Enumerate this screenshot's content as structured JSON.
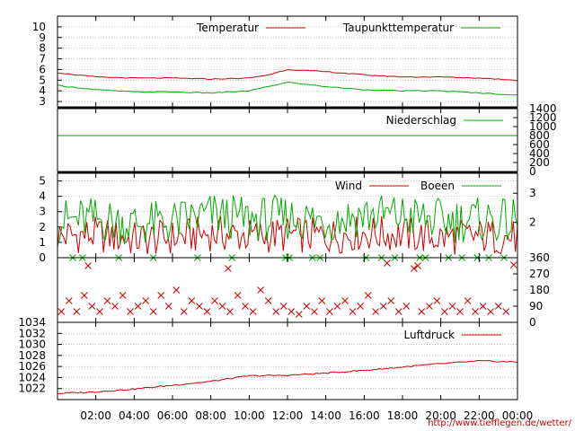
{
  "x_ticks": [
    "02:00",
    "04:00",
    "06:00",
    "08:00",
    "10:00",
    "12:00",
    "14:00",
    "16:00",
    "18:00",
    "20:00",
    "22:00",
    "00:00"
  ],
  "footer": "http://www.tiefflegen.de/wetter/",
  "colors": {
    "red": "#cc0000",
    "green": "#00aa00",
    "grid": "#999999"
  },
  "chart_data": [
    {
      "type": "line",
      "name": "temperature",
      "ylim": [
        2.5,
        11
      ],
      "y_ticks": [
        "3",
        "4",
        "5",
        "6",
        "7",
        "8",
        "9",
        "10"
      ],
      "grid": true,
      "legend": "top-right",
      "x": [
        0,
        2,
        4,
        6,
        8,
        10,
        11,
        12,
        14,
        16,
        18,
        20,
        22,
        24
      ],
      "series": [
        {
          "name": "Temperatur",
          "color": "red",
          "values": [
            5.7,
            5.3,
            5.2,
            5.2,
            5.1,
            5.2,
            5.5,
            6.0,
            5.8,
            5.5,
            5.3,
            5.3,
            5.2,
            5.0
          ]
        },
        {
          "name": "Taupunkttemperatur",
          "color": "green",
          "values": [
            4.5,
            4.1,
            3.9,
            3.9,
            3.8,
            4.0,
            4.4,
            4.8,
            4.4,
            4.1,
            4.0,
            4.0,
            3.8,
            3.6
          ]
        }
      ]
    },
    {
      "type": "line",
      "name": "precipitation",
      "ylim": [
        0,
        1400
      ],
      "y_ticks_right": [
        "0",
        "200",
        "400",
        "600",
        "800",
        "1000",
        "1200",
        "1400"
      ],
      "legend": "top-right",
      "x": [
        0,
        24
      ],
      "series": [
        {
          "name": "Niederschlag",
          "color": "green",
          "values": [
            800,
            800
          ]
        }
      ]
    },
    {
      "type": "line",
      "name": "wind",
      "ylim": [
        0,
        5.5
      ],
      "y_ticks": [
        "0",
        "1",
        "2",
        "3",
        "4",
        "5"
      ],
      "y_ticks_right": [
        "2",
        "3"
      ],
      "grid": true,
      "legend": "top-right",
      "x": [
        0,
        2,
        4,
        6,
        8,
        10,
        12,
        14,
        16,
        18,
        20,
        22,
        24
      ],
      "series": [
        {
          "name": "Wind",
          "color": "red",
          "values": [
            1.4,
            1.5,
            1.2,
            1.3,
            1.6,
            1.4,
            1.5,
            1.4,
            1.6,
            1.5,
            1.3,
            1.4,
            1.3
          ]
        },
        {
          "name": "Boeen",
          "color": "green",
          "values": [
            2.4,
            2.5,
            2.2,
            2.3,
            2.8,
            2.5,
            2.6,
            2.4,
            2.8,
            2.7,
            2.4,
            2.5,
            2.3
          ]
        }
      ]
    },
    {
      "type": "scatter",
      "name": "wind_direction",
      "ylim": [
        0,
        360
      ],
      "y_ticks_right": [
        "0",
        "90",
        "180",
        "270",
        "360"
      ],
      "series": [
        {
          "color": "red",
          "points": [
            [
              0.2,
              60
            ],
            [
              0.6,
              120
            ],
            [
              1.0,
              60
            ],
            [
              1.4,
              150
            ],
            [
              1.8,
              90
            ],
            [
              2.2,
              60
            ],
            [
              2.6,
              120
            ],
            [
              3.0,
              90
            ],
            [
              3.4,
              150
            ],
            [
              3.8,
              60
            ],
            [
              4.2,
              90
            ],
            [
              4.6,
              120
            ],
            [
              5.0,
              60
            ],
            [
              5.4,
              150
            ],
            [
              5.8,
              90
            ],
            [
              6.2,
              180
            ],
            [
              6.6,
              60
            ],
            [
              7.0,
              120
            ],
            [
              7.4,
              90
            ],
            [
              7.8,
              60
            ],
            [
              8.2,
              120
            ],
            [
              8.6,
              90
            ],
            [
              9.0,
              60
            ],
            [
              9.4,
              150
            ],
            [
              9.8,
              90
            ],
            [
              10.2,
              60
            ],
            [
              10.6,
              180
            ],
            [
              11.0,
              120
            ],
            [
              11.4,
              60
            ],
            [
              11.8,
              90
            ],
            [
              12.2,
              60
            ],
            [
              12.6,
              45
            ],
            [
              13.0,
              90
            ],
            [
              13.4,
              60
            ],
            [
              13.8,
              120
            ],
            [
              14.2,
              60
            ],
            [
              14.6,
              90
            ],
            [
              15.0,
              120
            ],
            [
              15.4,
              60
            ],
            [
              15.8,
              90
            ],
            [
              16.2,
              150
            ],
            [
              16.6,
              60
            ],
            [
              17.0,
              90
            ],
            [
              17.4,
              120
            ],
            [
              17.8,
              60
            ],
            [
              18.2,
              90
            ],
            [
              18.6,
              300
            ],
            [
              19.0,
              60
            ],
            [
              19.4,
              90
            ],
            [
              19.8,
              120
            ],
            [
              20.2,
              60
            ],
            [
              20.6,
              90
            ],
            [
              21.0,
              60
            ],
            [
              21.4,
              120
            ],
            [
              21.8,
              60
            ],
            [
              22.2,
              90
            ],
            [
              22.6,
              60
            ],
            [
              23.0,
              90
            ],
            [
              23.4,
              60
            ],
            [
              23.8,
              320
            ],
            [
              1.6,
              315
            ],
            [
              8.9,
              300
            ],
            [
              17.2,
              330
            ],
            [
              18.8,
              315
            ]
          ]
        },
        {
          "color": "green",
          "points": [
            [
              0.8,
              360
            ],
            [
              1.3,
              360
            ],
            [
              3.2,
              360
            ],
            [
              5.0,
              360
            ],
            [
              7.3,
              360
            ],
            [
              9.1,
              360
            ],
            [
              11.9,
              360
            ],
            [
              12.1,
              360
            ],
            [
              13.3,
              360
            ],
            [
              13.7,
              360
            ],
            [
              16.1,
              360
            ],
            [
              16.9,
              360
            ],
            [
              17.6,
              360
            ],
            [
              18.9,
              360
            ],
            [
              19.2,
              360
            ],
            [
              20.4,
              360
            ],
            [
              21.1,
              360
            ],
            [
              21.9,
              360
            ],
            [
              22.5,
              360
            ],
            [
              23.3,
              360
            ]
          ]
        }
      ]
    },
    {
      "type": "line",
      "name": "pressure",
      "ylim": [
        1020,
        1034
      ],
      "y_ticks": [
        "1022",
        "1024",
        "1026",
        "1028",
        "1030",
        "1032",
        "1034"
      ],
      "grid": true,
      "legend": "top-right",
      "x": [
        0,
        2,
        4,
        6,
        8,
        10,
        12,
        14,
        16,
        18,
        20,
        22,
        24
      ],
      "series": [
        {
          "name": "Luftdruck",
          "color": "red",
          "values": [
            1021.1,
            1021.4,
            1021.9,
            1022.6,
            1023.3,
            1024.3,
            1024.4,
            1024.8,
            1025.3,
            1025.9,
            1026.5,
            1027.0,
            1026.8
          ]
        }
      ]
    }
  ]
}
